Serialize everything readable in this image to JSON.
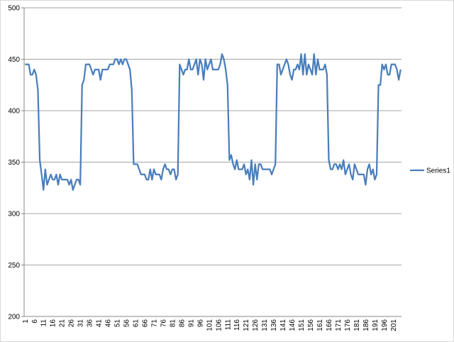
{
  "chart_data": {
    "type": "line",
    "categories": [
      "1",
      null,
      null,
      null,
      null,
      "6",
      null,
      null,
      null,
      null,
      "11",
      null,
      null,
      null,
      null,
      "16",
      null,
      null,
      null,
      null,
      "21",
      null,
      null,
      null,
      null,
      "26",
      null,
      null,
      null,
      null,
      "31",
      null,
      null,
      null,
      null,
      "36",
      null,
      null,
      null,
      null,
      "41",
      null,
      null,
      null,
      null,
      "46",
      null,
      null,
      null,
      null,
      "51",
      null,
      null,
      null,
      null,
      "56",
      null,
      null,
      null,
      null,
      "61",
      null,
      null,
      null,
      null,
      "66",
      null,
      null,
      null,
      null,
      "71",
      null,
      null,
      null,
      null,
      "76",
      null,
      null,
      null,
      null,
      "81",
      null,
      null,
      null,
      null,
      "86",
      null,
      null,
      null,
      null,
      "91",
      null,
      null,
      null,
      null,
      "96",
      null,
      null,
      null,
      null,
      "101",
      null,
      null,
      null,
      null,
      "106",
      null,
      null,
      null,
      null,
      "111",
      null,
      null,
      null,
      null,
      "116",
      null,
      null,
      null,
      null,
      "121",
      null,
      null,
      null,
      null,
      "126",
      null,
      null,
      null,
      null,
      "131",
      null,
      null,
      null,
      null,
      "136",
      null,
      null,
      null,
      null,
      "141",
      null,
      null,
      null,
      null,
      "146",
      null,
      null,
      null,
      null,
      "151",
      null,
      null,
      null,
      null,
      "156",
      null,
      null,
      null,
      null,
      "161",
      null,
      null,
      null,
      null,
      "166",
      null,
      null,
      null,
      null,
      "171",
      null,
      null,
      null,
      null,
      "176",
      null,
      null,
      null,
      null,
      "181",
      null,
      null,
      null,
      null,
      "186",
      null,
      null,
      null,
      null,
      "191",
      null,
      null,
      null,
      null,
      "196",
      null,
      null,
      null,
      null,
      "201",
      null,
      null,
      null,
      null
    ],
    "series": [
      {
        "name": "Series1",
        "color": "#4a7ebb",
        "values": [
          445,
          445,
          445,
          435,
          435,
          440,
          435,
          420,
          352,
          338,
          323,
          343,
          328,
          333,
          338,
          333,
          333,
          338,
          328,
          338,
          333,
          333,
          333,
          333,
          328,
          333,
          323,
          328,
          333,
          333,
          328,
          425,
          430,
          445,
          445,
          445,
          440,
          435,
          440,
          440,
          440,
          430,
          440,
          440,
          440,
          440,
          445,
          445,
          445,
          450,
          450,
          445,
          450,
          445,
          450,
          450,
          445,
          440,
          420,
          348,
          348,
          348,
          343,
          338,
          338,
          338,
          333,
          333,
          343,
          333,
          343,
          338,
          338,
          338,
          333,
          343,
          348,
          343,
          343,
          338,
          343,
          343,
          333,
          338,
          445,
          440,
          435,
          440,
          440,
          450,
          440,
          440,
          445,
          450,
          435,
          450,
          445,
          430,
          450,
          440,
          445,
          450,
          440,
          440,
          440,
          440,
          445,
          455,
          450,
          440,
          425,
          352,
          357,
          348,
          343,
          352,
          343,
          343,
          343,
          348,
          338,
          343,
          333,
          352,
          328,
          348,
          333,
          348,
          348,
          343,
          343,
          343,
          343,
          343,
          338,
          343,
          348,
          445,
          445,
          435,
          440,
          445,
          450,
          445,
          435,
          430,
          440,
          440,
          445,
          440,
          455,
          435,
          455,
          435,
          445,
          440,
          435,
          455,
          435,
          450,
          440,
          440,
          440,
          445,
          435,
          352,
          343,
          343,
          348,
          348,
          343,
          348,
          343,
          352,
          338,
          343,
          348,
          338,
          333,
          348,
          343,
          338,
          338,
          338,
          338,
          328,
          343,
          348,
          338,
          343,
          333,
          338,
          425,
          425,
          445,
          440,
          445,
          435,
          435,
          445,
          445,
          445,
          440,
          430,
          440
        ]
      }
    ],
    "ylim": [
      200,
      500
    ],
    "yticks": [
      200,
      250,
      300,
      350,
      400,
      450,
      500
    ],
    "grid": true,
    "legend": "right"
  }
}
